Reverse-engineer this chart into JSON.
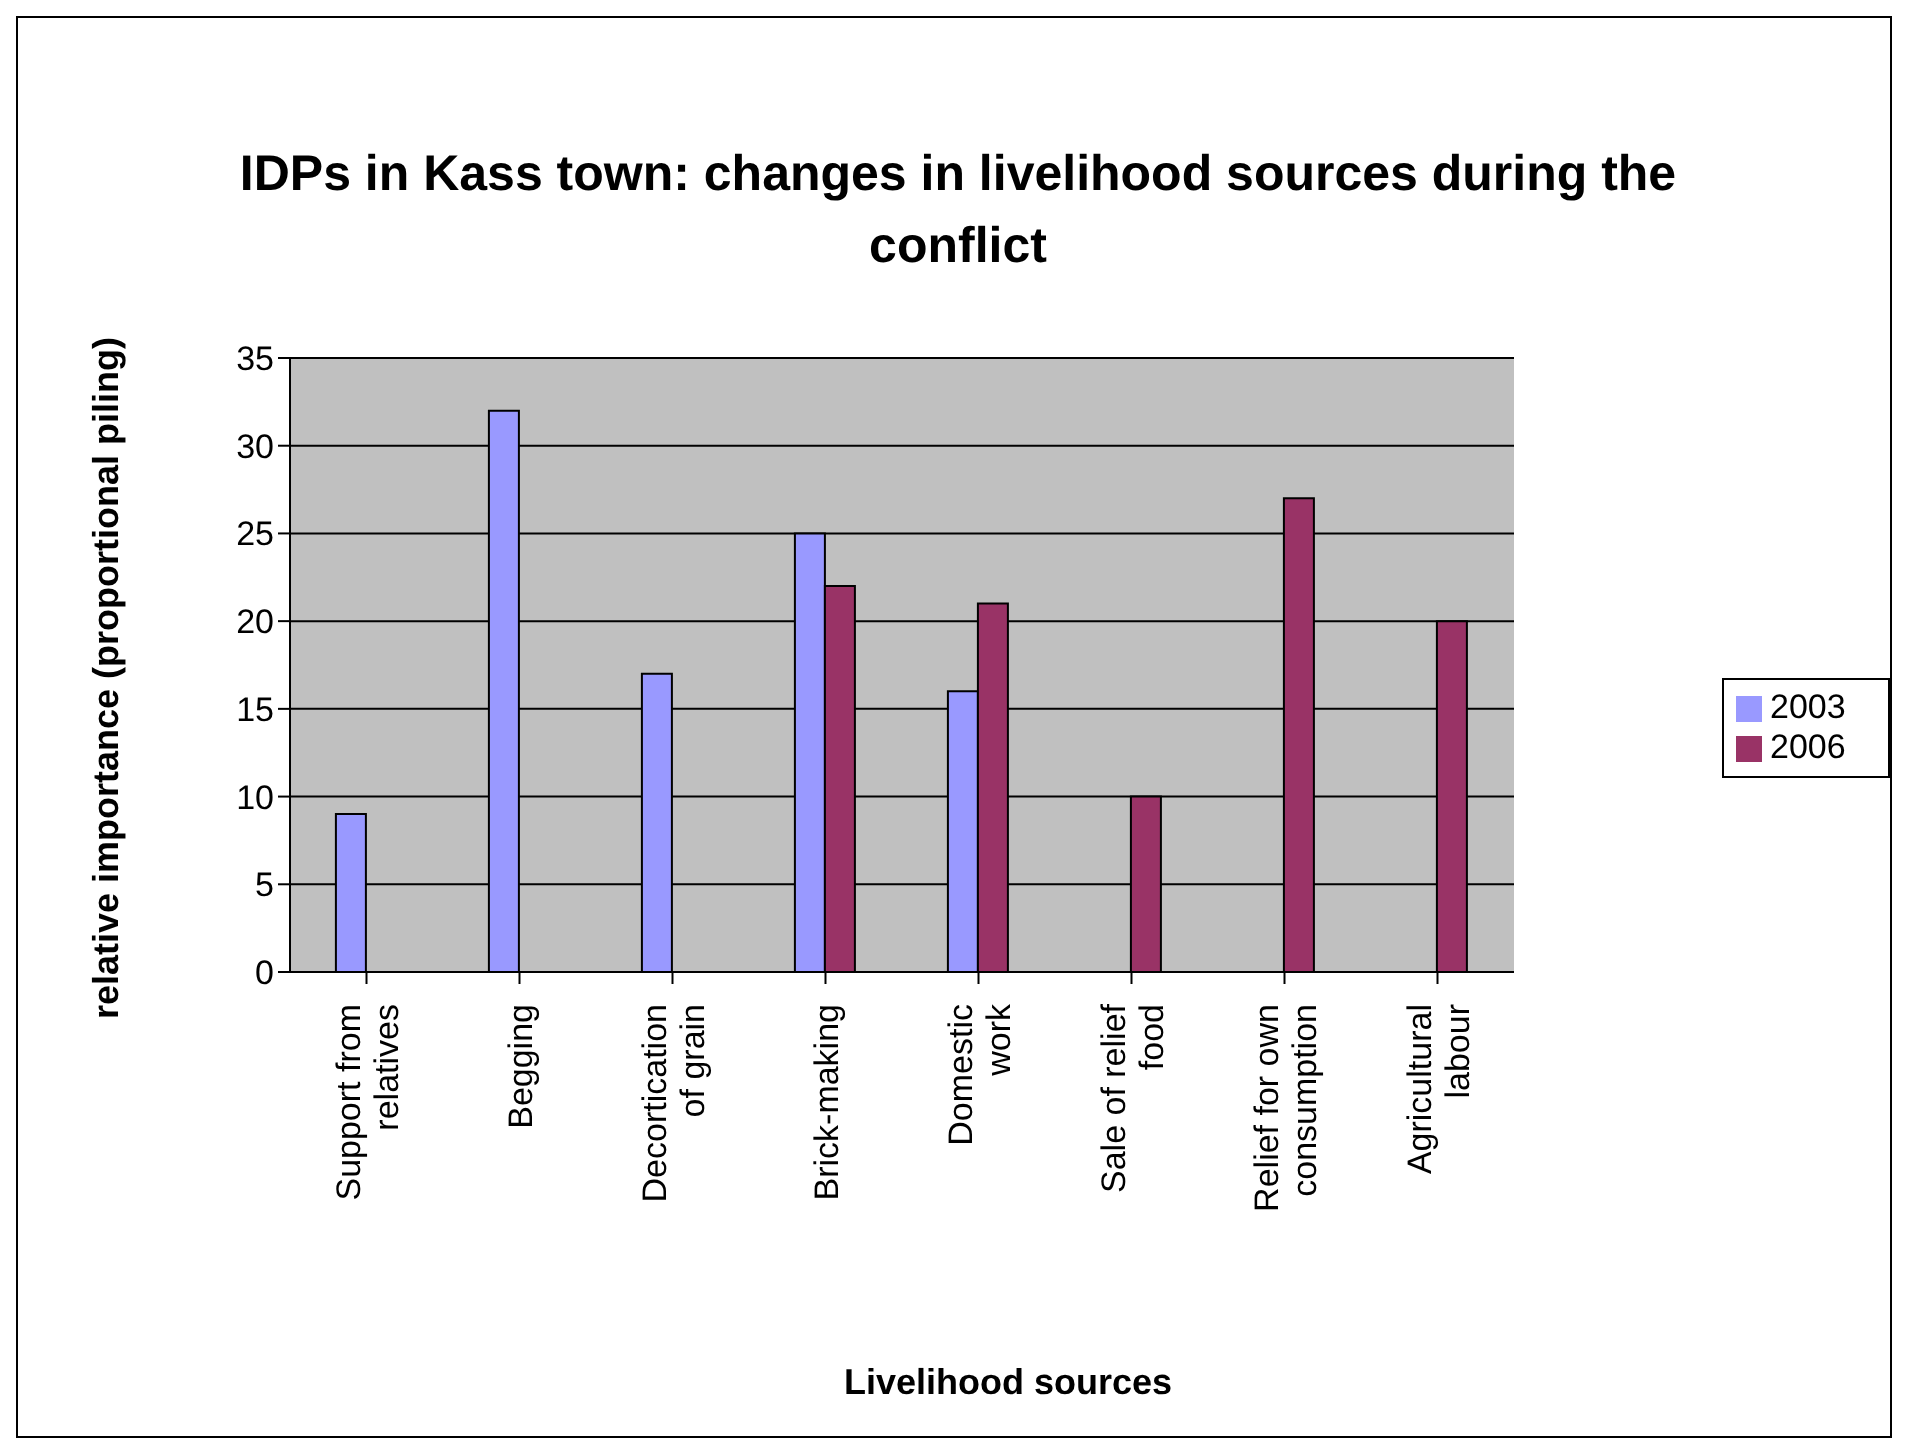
{
  "chart_data": {
    "type": "bar",
    "title": "IDPs in Kass town: changes in livelihood sources during the conflict",
    "xlabel": "Livelihood sources",
    "ylabel": "relative importance (proportional piling)",
    "categories": [
      "Support from\nrelatives",
      "Begging",
      "Decortication\nof grain",
      "Brick-making",
      "Domestic\nwork",
      "Sale of relief\nfood",
      "Relief for own\nconsumption",
      "Agricultural\nlabour"
    ],
    "series": [
      {
        "name": "2003",
        "color": "#9999ff",
        "values": [
          9,
          32,
          17,
          25,
          16,
          null,
          null,
          null
        ]
      },
      {
        "name": "2006",
        "color": "#993366",
        "values": [
          null,
          null,
          null,
          22,
          21,
          10,
          27,
          20
        ]
      }
    ],
    "ylim": [
      0,
      35
    ],
    "yticks": [
      0,
      5,
      10,
      15,
      20,
      25,
      30,
      35
    ],
    "grid": "y",
    "legend": "right"
  }
}
